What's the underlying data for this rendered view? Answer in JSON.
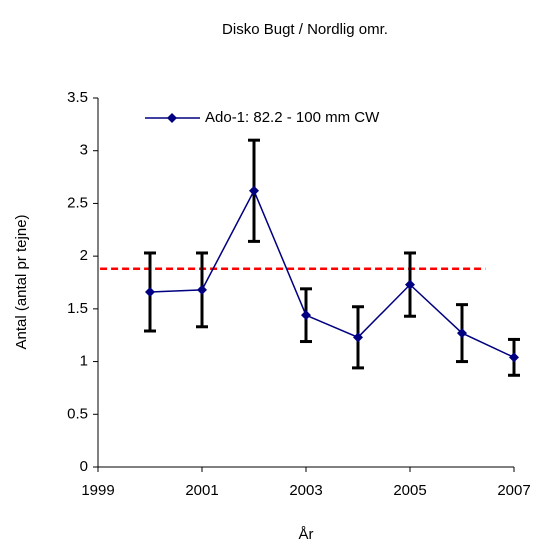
{
  "chart_data": {
    "type": "line",
    "title": "Disko Bugt / Nordlig omr.",
    "xlabel": "År",
    "ylabel": "Antal (antal pr tejne)",
    "x": [
      2000,
      2001,
      2002,
      2003,
      2004,
      2005,
      2006,
      2007
    ],
    "series": [
      {
        "name": "Ado-1: 82.2 - 100 mm CW",
        "color": "#000080",
        "values": [
          1.66,
          1.68,
          2.62,
          1.44,
          1.23,
          1.73,
          1.27,
          1.04
        ],
        "errors": [
          0.37,
          0.35,
          0.48,
          0.25,
          0.29,
          0.3,
          0.27,
          0.17
        ],
        "error_color": "#000000"
      }
    ],
    "reference_line": {
      "value": 1.88,
      "color": "#ff0000",
      "xrange": [
        1999.04,
        2006.45
      ]
    },
    "xlim": [
      1999,
      2007
    ],
    "xticks": [
      1999,
      2001,
      2003,
      2005,
      2007
    ],
    "ylim": [
      0,
      3.5
    ],
    "yticks": [
      0,
      0.5,
      1,
      1.5,
      2,
      2.5,
      3,
      3.5
    ],
    "legend": "top-left"
  }
}
